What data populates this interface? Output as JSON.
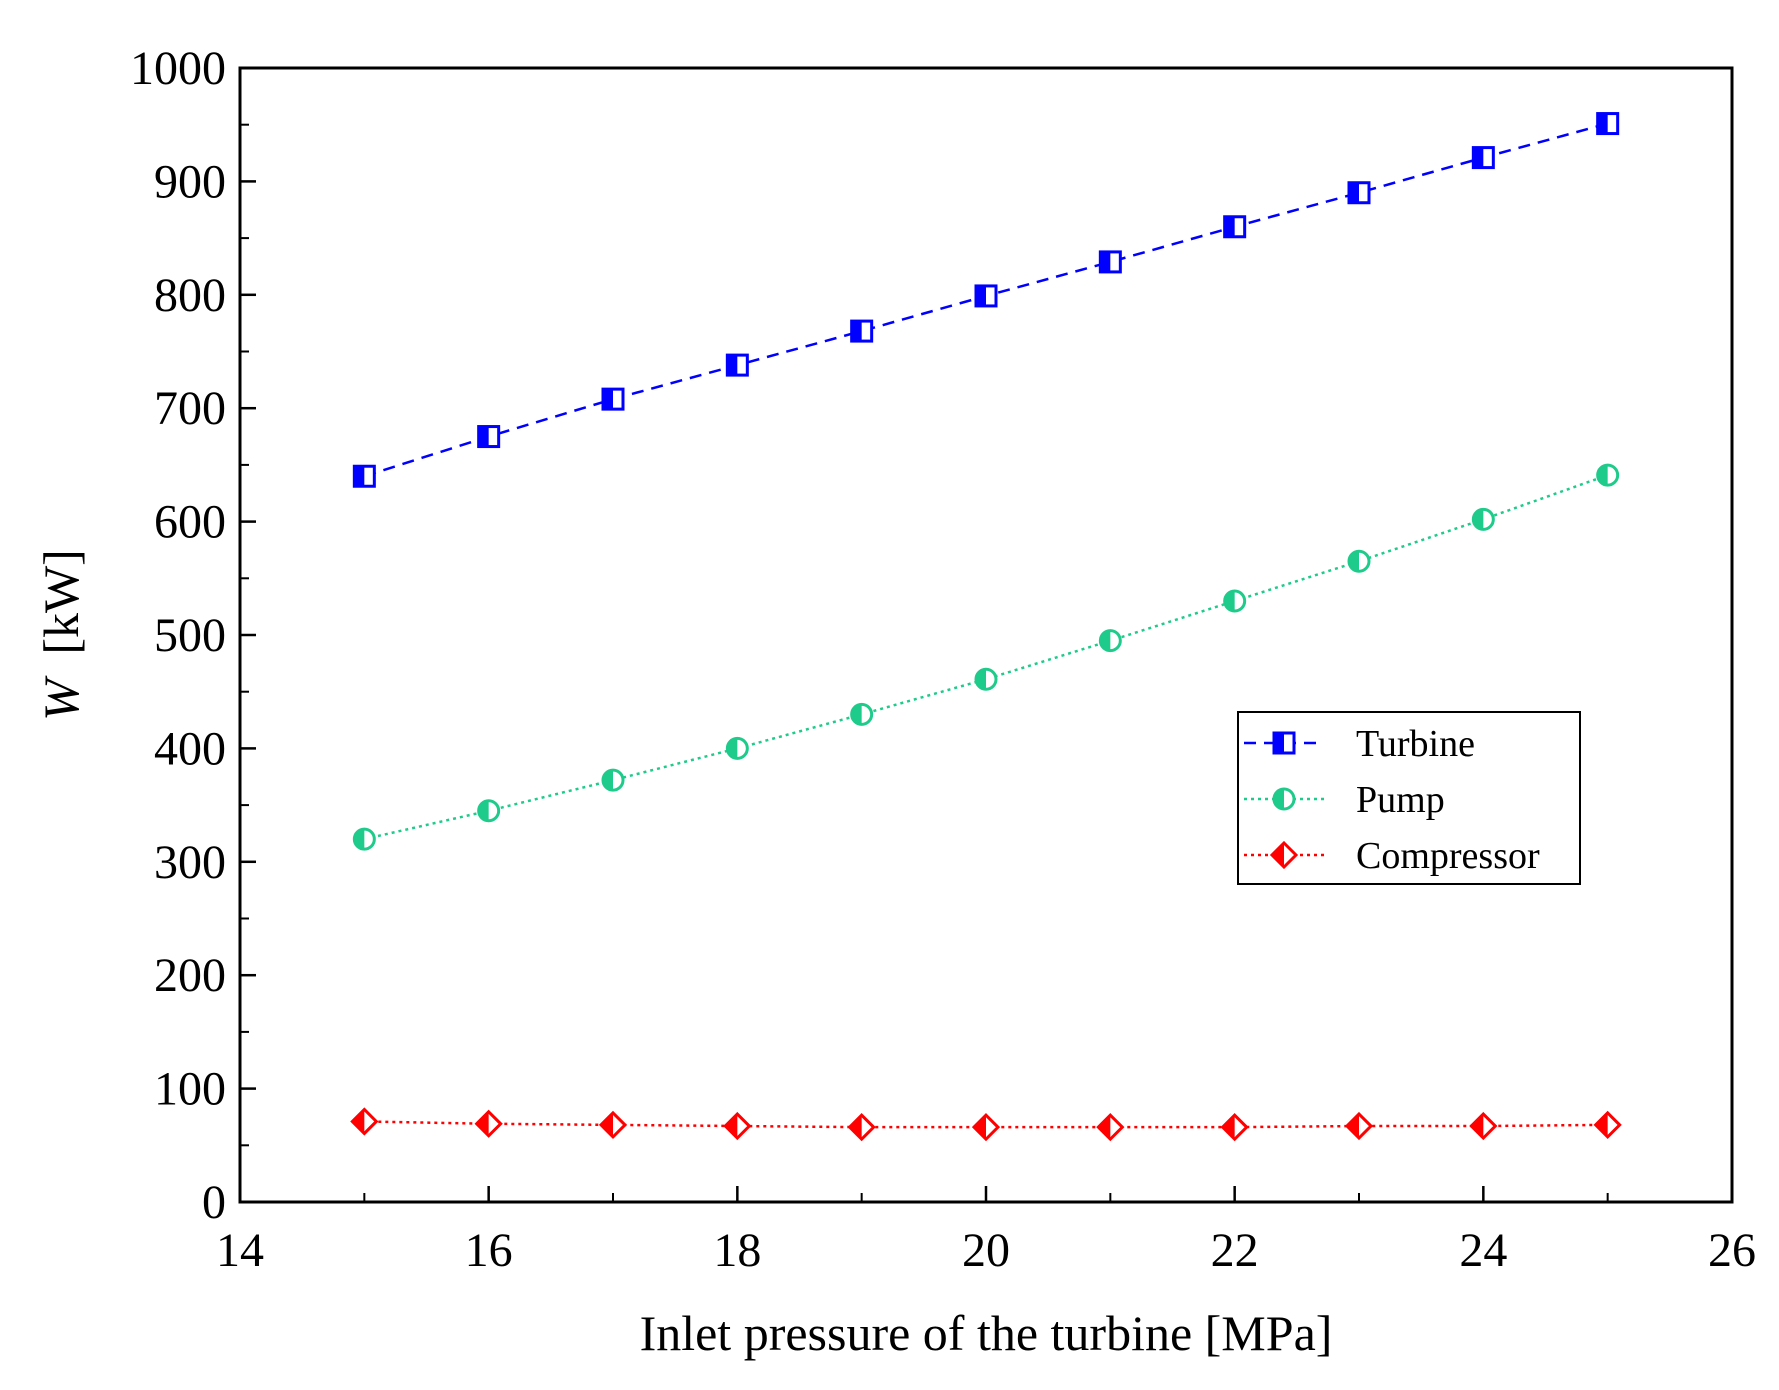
{
  "chart_data": {
    "type": "line",
    "title": "",
    "xlabel": "Inlet pressure of the turbine [MPa]",
    "ylabel_symbol": "W",
    "ylabel_unit": "[kW]",
    "xlim": [
      14,
      26
    ],
    "ylim": [
      0,
      1000
    ],
    "x_ticks": [
      14,
      16,
      18,
      20,
      22,
      24,
      26
    ],
    "y_ticks": [
      0,
      100,
      200,
      300,
      400,
      500,
      600,
      700,
      800,
      900,
      1000
    ],
    "grid": false,
    "legend_position": "middle-right",
    "x": [
      15,
      16,
      17,
      18,
      19,
      20,
      21,
      22,
      23,
      24,
      25
    ],
    "series": [
      {
        "name": "Turbine",
        "color": "#0000ff",
        "marker": "square",
        "dash": "dashed",
        "values": [
          640,
          675,
          708,
          738,
          768,
          799,
          829,
          860,
          890,
          921,
          951
        ]
      },
      {
        "name": "Pump",
        "color": "#1fcb8a",
        "marker": "circle",
        "dash": "dotted",
        "values": [
          320,
          345,
          372,
          400,
          430,
          461,
          495,
          530,
          565,
          602,
          641
        ]
      },
      {
        "name": "Compressor",
        "color": "#ff0000",
        "marker": "diamond",
        "dash": "dotted",
        "values": [
          71,
          69,
          68,
          67,
          66,
          66,
          66,
          66,
          67,
          67,
          68
        ]
      }
    ]
  }
}
